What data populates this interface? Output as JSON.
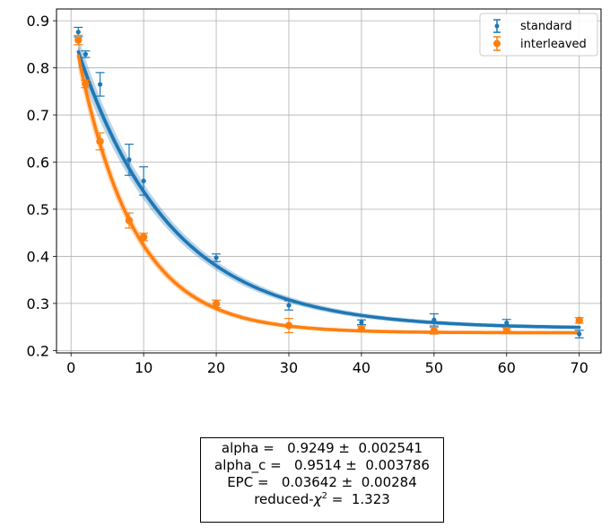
{
  "chart_data": {
    "type": "scatter",
    "xlim": [
      -2,
      73
    ],
    "ylim": [
      0.195,
      0.925
    ],
    "xticks": [
      0,
      10,
      20,
      30,
      40,
      50,
      60,
      70
    ],
    "yticks": [
      0.2,
      0.3,
      0.4,
      0.5,
      0.6,
      0.7,
      0.8,
      0.9
    ],
    "xtick_labels": [
      "0",
      "10",
      "20",
      "30",
      "40",
      "50",
      "60",
      "70"
    ],
    "ytick_labels": [
      "0.2",
      "0.3",
      "0.4",
      "0.5",
      "0.6",
      "0.7",
      "0.8",
      "0.9"
    ],
    "grid": true,
    "legend_position": "top-right",
    "series": [
      {
        "name": "standard",
        "color": "#1f77b4",
        "marker": "small-dot",
        "x": [
          1,
          2,
          4,
          8,
          10,
          20,
          30,
          40,
          50,
          60,
          70
        ],
        "y": [
          0.876,
          0.829,
          0.765,
          0.605,
          0.56,
          0.397,
          0.296,
          0.26,
          0.265,
          0.259,
          0.235
        ],
        "yerr": [
          0.01,
          0.007,
          0.025,
          0.033,
          0.03,
          0.008,
          0.01,
          0.005,
          0.013,
          0.007,
          0.008
        ],
        "fit": {
          "a": 0.6352,
          "alpha": 0.9249,
          "b": 0.2466
        }
      },
      {
        "name": "interleaved",
        "color": "#ff7f0e",
        "marker": "dot",
        "x": [
          1,
          2,
          4,
          8,
          10,
          20,
          30,
          40,
          50,
          60,
          70
        ],
        "y": [
          0.859,
          0.766,
          0.644,
          0.476,
          0.441,
          0.299,
          0.253,
          0.246,
          0.242,
          0.242,
          0.264
        ],
        "yerr": [
          0.01,
          0.008,
          0.018,
          0.016,
          0.008,
          0.008,
          0.015,
          0.006,
          0.007,
          0.006,
          0.006
        ],
        "fit": {
          "a": 0.6688,
          "alpha": 0.8796,
          "b": 0.2377
        }
      }
    ]
  },
  "results": {
    "line1": "alpha =   0.9249 ±  0.002541",
    "line2": "alpha_c =   0.9514 ±  0.003786",
    "line3": "EPC =   0.03642 ±  0.00284",
    "line4_prefix": "reduced-",
    "line4_symbol": "χ",
    "line4_sup": "2",
    "line4_suffix": " =  1.323"
  }
}
